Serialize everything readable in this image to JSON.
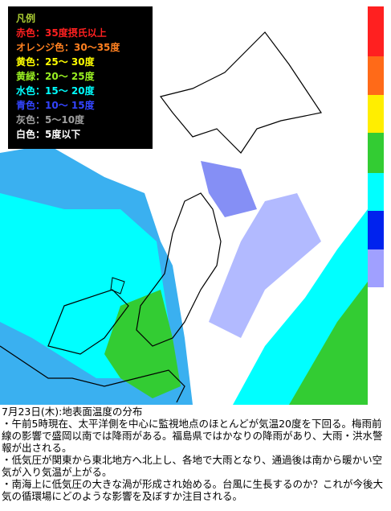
{
  "legend": {
    "title": "凡例",
    "items": [
      "赤色：35度摂氏以上",
      "オレンジ色：30～35度",
      "黄色：25～ 30度",
      "黄緑：20～ 25度",
      "水色：15～ 20度",
      "青色：10～ 15度",
      "灰色：5～10度",
      "白色：5度以下"
    ]
  },
  "caption": "7月23日(木):地表面温度の分布",
  "notes": [
    "・午前5時現在、太平洋側を中心に監視地点のほとんどが気温20度を下回る。梅雨前線の影響で盛岡以南では降雨がある。福島県ではかなりの降雨があり、大雨・洪水警報が出される。",
    "・低気圧が関東から東北地方へ北上し、各地で大雨となり、通過後は南から暖かい空気が入り気温が上がる。",
    "・南海上に低気圧の大きな渦が形成され始める。台風に生長するのか？これが今後大気の循環場にどのような影響を及ぼすか注目される。"
  ]
}
